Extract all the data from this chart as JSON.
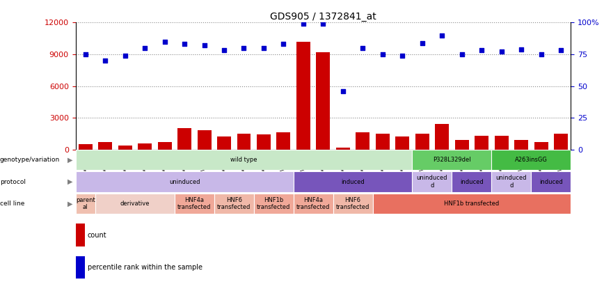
{
  "title": "GDS905 / 1372841_at",
  "samples": [
    "GSM27203",
    "GSM27204",
    "GSM27205",
    "GSM27206",
    "GSM27207",
    "GSM27150",
    "GSM27152",
    "GSM27156",
    "GSM27159",
    "GSM27063",
    "GSM27148",
    "GSM27151",
    "GSM27153",
    "GSM27157",
    "GSM27160",
    "GSM27147",
    "GSM27149",
    "GSM27161",
    "GSM27165",
    "GSM27163",
    "GSM27167",
    "GSM27169",
    "GSM27171",
    "GSM27170",
    "GSM27172"
  ],
  "counts": [
    500,
    700,
    400,
    550,
    700,
    2000,
    1800,
    1200,
    1500,
    1400,
    1600,
    10200,
    9200,
    200,
    1600,
    1500,
    1200,
    1500,
    2400,
    900,
    1300,
    1300,
    900,
    700,
    1500
  ],
  "percentiles": [
    75,
    70,
    74,
    80,
    85,
    83,
    82,
    78,
    80,
    80,
    83,
    99,
    99,
    46,
    80,
    75,
    74,
    84,
    90,
    75,
    78,
    77,
    79,
    75,
    78
  ],
  "bar_color": "#cc0000",
  "dot_color": "#0000cc",
  "ylim_left": [
    0,
    12000
  ],
  "ylim_right": [
    0,
    100
  ],
  "yticks_left": [
    0,
    3000,
    6000,
    9000,
    12000
  ],
  "yticks_right": [
    0,
    25,
    50,
    75,
    100
  ],
  "ytick_labels_right": [
    "0",
    "25",
    "50",
    "75",
    "100%"
  ],
  "genotype_groups": [
    {
      "label": "wild type",
      "start": 0,
      "end": 17,
      "color": "#c8e8c8"
    },
    {
      "label": "P328L329del",
      "start": 17,
      "end": 21,
      "color": "#66cc66"
    },
    {
      "label": "A263insGG",
      "start": 21,
      "end": 25,
      "color": "#44bb44"
    }
  ],
  "protocol_groups": [
    {
      "label": "uninduced",
      "start": 0,
      "end": 11,
      "color": "#c8b8e8"
    },
    {
      "label": "induced",
      "start": 11,
      "end": 17,
      "color": "#7755bb"
    },
    {
      "label": "uninduced\nd",
      "start": 17,
      "end": 19,
      "color": "#c8b8e8"
    },
    {
      "label": "induced",
      "start": 19,
      "end": 21,
      "color": "#7755bb"
    },
    {
      "label": "uninduced\nd",
      "start": 21,
      "end": 23,
      "color": "#c8b8e8"
    },
    {
      "label": "induced",
      "start": 23,
      "end": 25,
      "color": "#7755bb"
    }
  ],
  "cell_groups": [
    {
      "label": "parent\nal",
      "start": 0,
      "end": 1,
      "color": "#f0c0b0"
    },
    {
      "label": "derivative",
      "start": 1,
      "end": 5,
      "color": "#f0d0c8"
    },
    {
      "label": "HNF4a\ntransfected",
      "start": 5,
      "end": 7,
      "color": "#f0a898"
    },
    {
      "label": "HNF6\ntransfected",
      "start": 7,
      "end": 9,
      "color": "#f0b8a8"
    },
    {
      "label": "HNF1b\ntransfected",
      "start": 9,
      "end": 11,
      "color": "#f0a898"
    },
    {
      "label": "HNF4a\ntransfected",
      "start": 11,
      "end": 13,
      "color": "#f0a898"
    },
    {
      "label": "HNF6\ntransfected",
      "start": 13,
      "end": 15,
      "color": "#f0b8a8"
    },
    {
      "label": "HNF1b transfected",
      "start": 15,
      "end": 25,
      "color": "#e87060"
    }
  ],
  "row_labels": [
    "genotype/variation",
    "protocol",
    "cell line"
  ],
  "legend_count_color": "#cc0000",
  "legend_dot_color": "#0000cc",
  "grid_color": "#888888",
  "xtick_bg": "#dddddd",
  "border_color": "#888888"
}
